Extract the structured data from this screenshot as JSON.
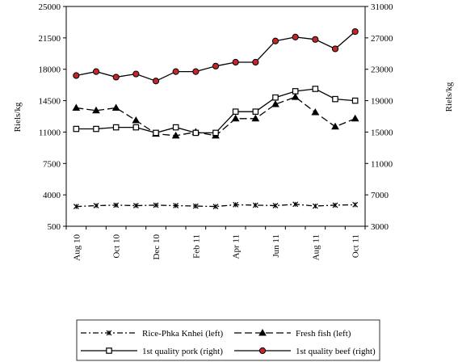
{
  "chart_data": {
    "type": "line",
    "ylabel_left": "Riels/kg",
    "ylabel_right": "Riels/kg",
    "y_left": {
      "lim": [
        500,
        25000
      ],
      "ticks": [
        "500",
        "4000",
        "7500",
        "11000",
        "14500",
        "18000",
        "21500",
        "25000"
      ]
    },
    "y_right": {
      "lim": [
        3000,
        31000
      ],
      "ticks": [
        "3000",
        "7000",
        "11000",
        "15000",
        "19000",
        "23000",
        "27000",
        "31000"
      ]
    },
    "x": [
      "Aug 10",
      "Sep 10",
      "Oct 10",
      "Nov 10",
      "Dec 10",
      "Jan 11",
      "Feb 11",
      "Mar 11",
      "Apr 11",
      "May 11",
      "Jun 11",
      "Jul 11",
      "Aug 11",
      "Sep 11",
      "Oct 11"
    ],
    "x_tick_labels": [
      "Aug 10",
      "",
      "Oct 10",
      "",
      "Dec 10",
      "",
      "Feb 11",
      "",
      "Apr 11",
      "",
      "Jun 11",
      "",
      "Aug 11",
      "",
      "Oct 11"
    ],
    "series": [
      {
        "name": "Rice-Phka Knhei (left)",
        "axis": "left",
        "marker": "x",
        "dash": "dashdot",
        "color": "#000000",
        "values": [
          2700,
          2800,
          2850,
          2800,
          2850,
          2800,
          2750,
          2700,
          2900,
          2850,
          2800,
          2950,
          2750,
          2850,
          2900
        ]
      },
      {
        "name": "Fresh fish (left)",
        "axis": "left",
        "marker": "triangle",
        "dash": "dash",
        "color": "#000000",
        "values": [
          13700,
          13400,
          13700,
          12300,
          10800,
          10600,
          11000,
          10600,
          12500,
          12500,
          14100,
          14900,
          13200,
          11600,
          12500
        ]
      },
      {
        "name": "1st quality pork (right)",
        "axis": "right",
        "marker": "square",
        "dash": "solid",
        "color": "#000000",
        "values": [
          15400,
          15400,
          15600,
          15600,
          14900,
          15600,
          14900,
          14900,
          17600,
          17600,
          19400,
          20200,
          20500,
          19200,
          19000
        ]
      },
      {
        "name": "1st quality beef (right)",
        "axis": "right",
        "marker": "circle",
        "dash": "solid",
        "color": "#000000",
        "marker_fill": "#c0262b",
        "values": [
          22200,
          22700,
          22000,
          22400,
          21500,
          22700,
          22700,
          23400,
          23900,
          23900,
          26600,
          27100,
          26800,
          25600,
          27800
        ]
      }
    ],
    "legend_position": "bottom",
    "grid": false
  }
}
